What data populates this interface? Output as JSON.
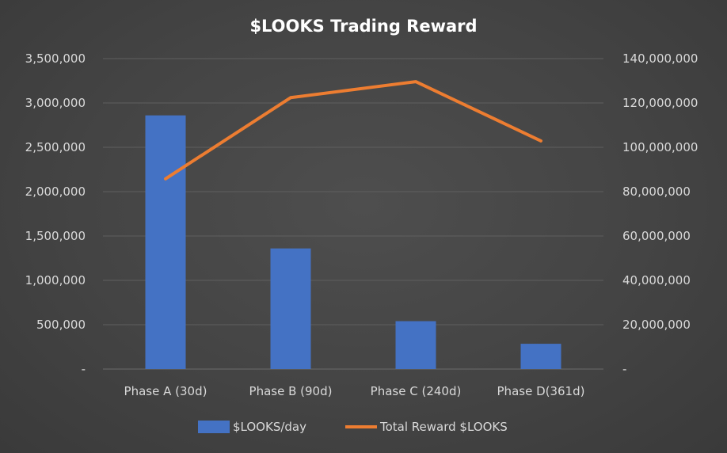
{
  "chart_data": {
    "type": "bar",
    "title": "$LOOKS Trading Reward",
    "categories": [
      "Phase A (30d)",
      "Phase B (90d)",
      "Phase C (240d)",
      "Phase D(361d)"
    ],
    "series": [
      {
        "name": "$LOOKS/day",
        "type": "bar",
        "axis": "left",
        "values": [
          2860000,
          1360000,
          540000,
          285000
        ],
        "color": "#4472c4"
      },
      {
        "name": "Total Reward $LOOKS",
        "type": "line",
        "axis": "right",
        "values": [
          85800000,
          122400000,
          129600000,
          102900000
        ],
        "color": "#ed7d31"
      }
    ],
    "y_left": {
      "min": 0,
      "max": 3500000,
      "step": 500000,
      "tick_labels": [
        "-",
        "500,000",
        "1,000,000",
        "1,500,000",
        "2,000,000",
        "2,500,000",
        "3,000,000",
        "3,500,000"
      ]
    },
    "y_right": {
      "min": 0,
      "max": 140000000,
      "step": 20000000,
      "tick_labels": [
        "-",
        "20,000,000",
        "40,000,000",
        "60,000,000",
        "80,000,000",
        "100,000,000",
        "120,000,000",
        "140,000,000"
      ]
    },
    "grid": true,
    "legend_position": "bottom",
    "background_color": "#444444"
  }
}
